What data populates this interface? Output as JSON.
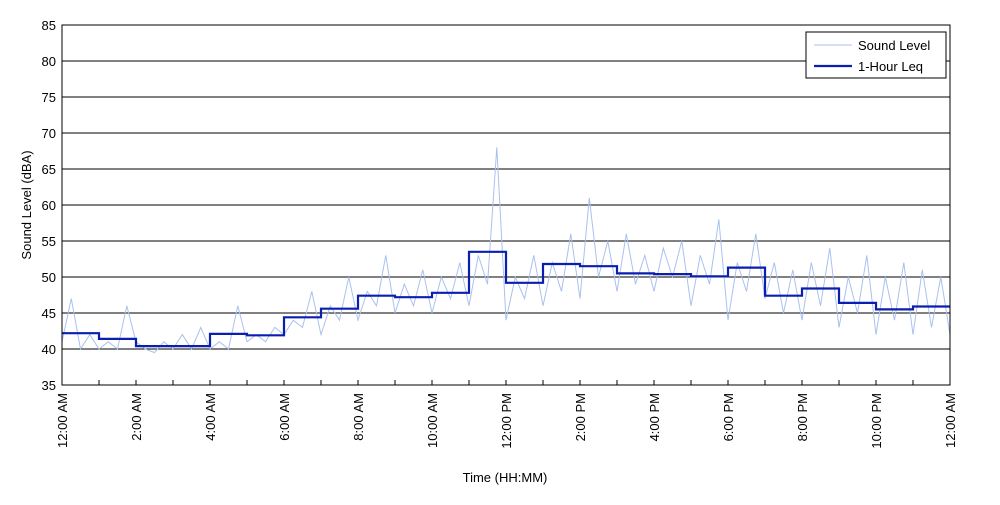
{
  "chart_data": {
    "type": "line",
    "title": "",
    "xlabel": "Time (HH:MM)",
    "ylabel": "Sound Level (dBA)",
    "ylim": [
      35,
      85
    ],
    "yticks": [
      35,
      40,
      45,
      50,
      55,
      60,
      65,
      70,
      75,
      80,
      85
    ],
    "xlim_hours": [
      0,
      24
    ],
    "xtick_hours": [
      0,
      2,
      4,
      6,
      8,
      10,
      12,
      14,
      16,
      18,
      20,
      22,
      24
    ],
    "xtick_labels": [
      "12:00 AM",
      "2:00 AM",
      "4:00 AM",
      "6:00 AM",
      "8:00 AM",
      "10:00 AM",
      "12:00 PM",
      "2:00 PM",
      "4:00 PM",
      "6:00 PM",
      "8:00 PM",
      "10:00 PM",
      "12:00 AM"
    ],
    "grid": "horizontal",
    "legend_position": "top-right",
    "series": [
      {
        "name": "Sound Level",
        "color": "#a9c1f0",
        "x_hours": [
          0,
          0.25,
          0.5,
          0.75,
          1,
          1.25,
          1.5,
          1.75,
          2,
          2.25,
          2.5,
          2.75,
          3,
          3.25,
          3.5,
          3.75,
          4,
          4.25,
          4.5,
          4.75,
          5,
          5.25,
          5.5,
          5.75,
          6,
          6.25,
          6.5,
          6.75,
          7,
          7.25,
          7.5,
          7.75,
          8,
          8.25,
          8.5,
          8.75,
          9,
          9.25,
          9.5,
          9.75,
          10,
          10.25,
          10.5,
          10.75,
          11,
          11.25,
          11.5,
          11.75,
          12,
          12.25,
          12.5,
          12.75,
          13,
          13.25,
          13.5,
          13.75,
          14,
          14.25,
          14.5,
          14.75,
          15,
          15.25,
          15.5,
          15.75,
          16,
          16.25,
          16.5,
          16.75,
          17,
          17.25,
          17.5,
          17.75,
          18,
          18.25,
          18.5,
          18.75,
          19,
          19.25,
          19.5,
          19.75,
          20,
          20.25,
          20.5,
          20.75,
          21,
          21.25,
          21.5,
          21.75,
          22,
          22.25,
          22.5,
          22.75,
          23,
          23.25,
          23.5,
          23.75,
          24
        ],
        "values": [
          41,
          47,
          40,
          42,
          40,
          41,
          40,
          46,
          41,
          40,
          39.5,
          41,
          40,
          42,
          40,
          43,
          40,
          41,
          40,
          46,
          41,
          42,
          41,
          43,
          42,
          44,
          43,
          48,
          42,
          46,
          44,
          50,
          44,
          48,
          46,
          53,
          45,
          49,
          46,
          51,
          45,
          50,
          47,
          52,
          46,
          53,
          49,
          68,
          44,
          50,
          47,
          53,
          46,
          52,
          48,
          56,
          47,
          61,
          50,
          55,
          48,
          56,
          49,
          53,
          48,
          54,
          50,
          55,
          46,
          53,
          49,
          58,
          44,
          52,
          48,
          56,
          47,
          52,
          45,
          51,
          44,
          52,
          46,
          54,
          43,
          50,
          45,
          53,
          42,
          50,
          44,
          52,
          42,
          51,
          43,
          50,
          42
        ]
      },
      {
        "name": "1-Hour Leq",
        "color": "#0a1fb0",
        "step_hours": [
          0,
          1,
          2,
          3,
          4,
          5,
          6,
          7,
          8,
          9,
          10,
          11,
          12,
          13,
          14,
          15,
          16,
          17,
          18,
          19,
          20,
          21,
          22,
          23,
          24
        ],
        "values": [
          42.2,
          41.4,
          40.4,
          40.4,
          42.1,
          41.9,
          44.4,
          45.6,
          47.4,
          47.2,
          47.8,
          53.5,
          49.2,
          51.8,
          51.5,
          50.5,
          50.4,
          50.1,
          51.3,
          47.4,
          48.4,
          46.4,
          45.5,
          45.9
        ]
      }
    ]
  }
}
